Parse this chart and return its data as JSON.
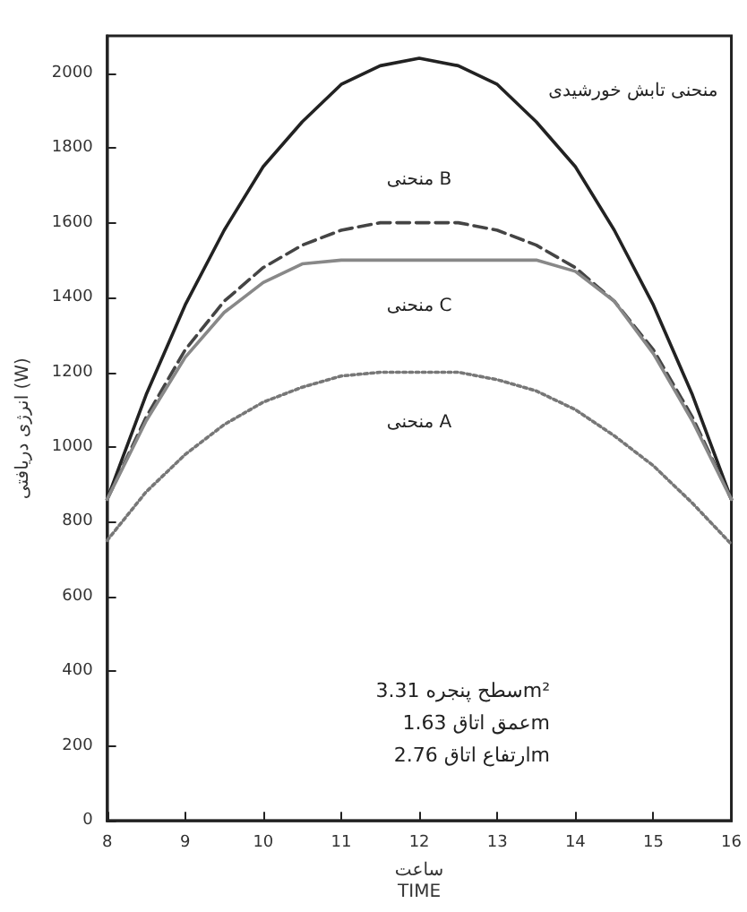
{
  "chart_data": {
    "type": "line",
    "xlabel": "ساعت\nTIME",
    "ylabel": "انرژی دریافتی (W)",
    "x": [
      8,
      8.5,
      9,
      9.5,
      10,
      10.5,
      11,
      11.5,
      12,
      12.5,
      13,
      13.5,
      14,
      14.5,
      15,
      15.5,
      16
    ],
    "xlim": [
      8,
      16
    ],
    "xticks": [
      8,
      9,
      10,
      11,
      12,
      13,
      14,
      15,
      16
    ],
    "ylim": [
      0,
      2100
    ],
    "yticks": [
      0,
      200,
      400,
      600,
      800,
      1000,
      1200,
      1400,
      1600,
      1800,
      2000
    ],
    "grid": false,
    "marker": "none",
    "series": [
      {
        "name": "منحنی تابش خورشیدی",
        "color": "#222222",
        "line_style": "solid",
        "values": [
          860,
          1140,
          1380,
          1580,
          1750,
          1870,
          1970,
          2020,
          2040,
          2020,
          1970,
          1870,
          1750,
          1580,
          1380,
          1140,
          860
        ]
      },
      {
        "name": "منحنی B",
        "color": "#444444",
        "line_style": "dashed",
        "values": [
          860,
          1080,
          1260,
          1390,
          1480,
          1540,
          1580,
          1600,
          1600,
          1600,
          1580,
          1540,
          1480,
          1390,
          1260,
          1080,
          860
        ]
      },
      {
        "name": "منحنی C",
        "color": "#888888",
        "line_style": "solid",
        "values": [
          860,
          1070,
          1240,
          1360,
          1440,
          1490,
          1500,
          1500,
          1500,
          1500,
          1500,
          1500,
          1470,
          1390,
          1250,
          1070,
          860
        ]
      },
      {
        "name": "منحنی A",
        "color": "#777777",
        "line_style": "dotted",
        "values": [
          750,
          880,
          980,
          1060,
          1120,
          1160,
          1190,
          1200,
          1200,
          1200,
          1180,
          1150,
          1100,
          1030,
          950,
          850,
          740
        ]
      }
    ],
    "annotations": [
      "سطح پنجره 3.31m²",
      "عمق اتاق 1.63m",
      "ارتفاع اتاق 2.76m"
    ]
  }
}
